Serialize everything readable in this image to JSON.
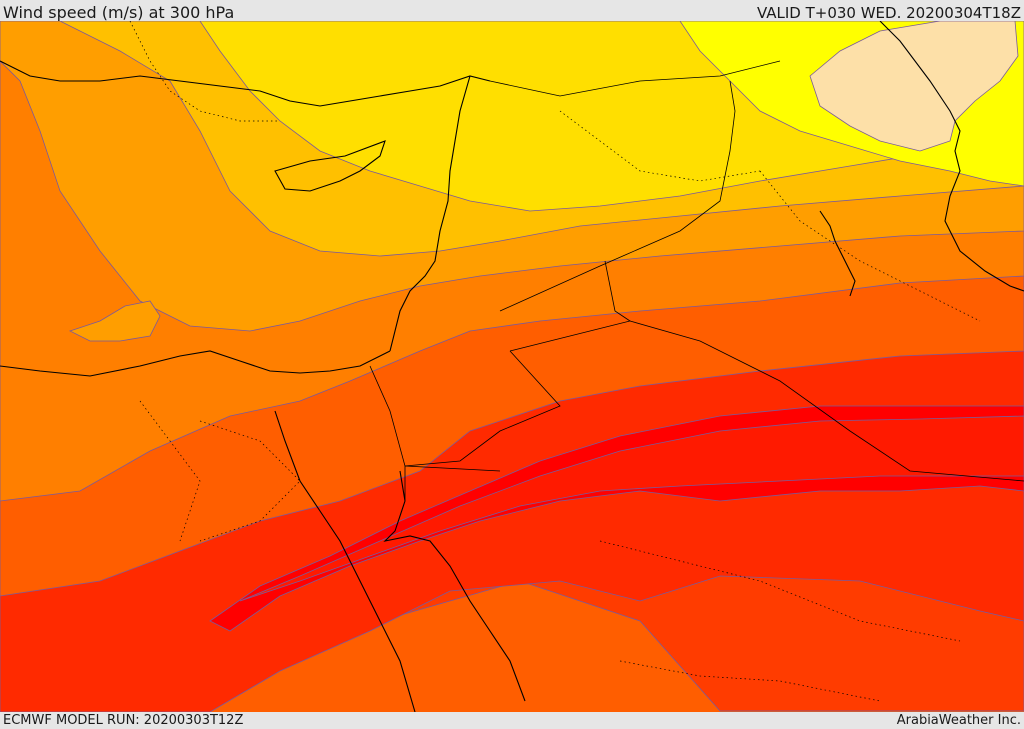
{
  "header": {
    "title": "Wind speed (m/s) at 300 hPa",
    "valid_time": "VALID T+030 WED. 20200304T18Z"
  },
  "footer": {
    "model_run": "ECMWF MODEL RUN: 20200303T12Z",
    "provider": "ArabiaWeather Inc."
  },
  "map": {
    "field": "wind speed",
    "pressure_level": "300 hPa",
    "colors": {
      "band_lightest": "#fde0a8",
      "band_1": "#ffff00",
      "band_2": "#ffdf00",
      "band_3": "#ffc000",
      "band_4": "#ff9e00",
      "band_5": "#ff7f00",
      "band_6": "#ff5e00",
      "band_7": "#ff3c00",
      "band_8": "#ff1a00",
      "band_core": "#ff0000",
      "contour_line": "#7a5a9c",
      "coastline": "#000000"
    }
  }
}
